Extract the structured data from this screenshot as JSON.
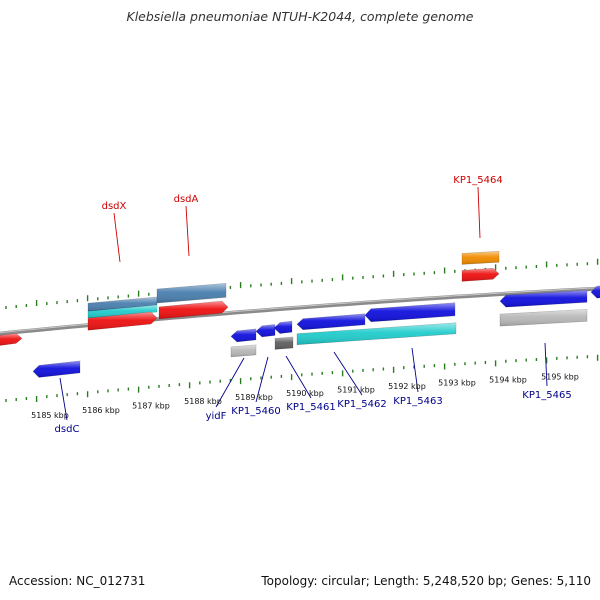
{
  "title": "Klebsiella pneumoniae NTUH-K2044, complete genome",
  "footer": {
    "accession": "Accession: NC_012731",
    "summary": "Topology: circular; Length: 5,248,520 bp; Genes: 5,110"
  },
  "colors": {
    "background": "#ffffff",
    "backbone": "#8a8a8a",
    "tick": "#2a7d1f",
    "forward_label": "#cc0000",
    "reverse_label": "#00008b",
    "gene_red": "#ee1111",
    "gene_blue": "#1111dd",
    "gene_cyan": "#22cccc",
    "gene_steel": "#4a7fae",
    "gene_orange": "#f08c00",
    "gene_lightgray": "#b8b8b8",
    "gene_darkgray": "#5f5f5f"
  },
  "scale": {
    "unit": "kbp",
    "labels": [
      "5185 kbp",
      "5186 kbp",
      "5187 kbp",
      "5188 kbp",
      "5189 kbp",
      "5190 kbp",
      "5191 kbp",
      "5192 kbp",
      "5193 kbp",
      "5194 kbp",
      "5195 kbp"
    ]
  },
  "gene_labels": [
    {
      "text": "dsdX",
      "strand": "forward"
    },
    {
      "text": "dsdA",
      "strand": "forward"
    },
    {
      "text": "KP1_5464",
      "strand": "forward"
    },
    {
      "text": "dsdC",
      "strand": "reverse"
    },
    {
      "text": "yidF",
      "strand": "reverse"
    },
    {
      "text": "KP1_5460",
      "strand": "reverse"
    },
    {
      "text": "KP1_5461",
      "strand": "reverse"
    },
    {
      "text": "KP1_5462",
      "strand": "reverse"
    },
    {
      "text": "KP1_5463",
      "strand": "reverse"
    },
    {
      "text": "KP1_5465",
      "strand": "reverse"
    }
  ]
}
